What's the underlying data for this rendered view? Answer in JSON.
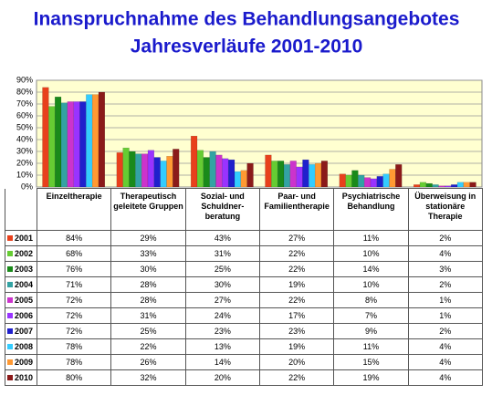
{
  "chart_data": {
    "type": "bar",
    "title": "Inanspruchnahme des Behandlungsangebotes",
    "subtitle": "Jahresverläufe 2001-2010",
    "categories": [
      "Einzeltherapie",
      "Therapeutisch geleitete Gruppen",
      "Sozial- und Schuldner-beratung",
      "Paar- und Familientherapie",
      "Psychiatrische Behandlung",
      "Überweisung in stationäre Therapie"
    ],
    "ylim": [
      0,
      90
    ],
    "yticks": [
      {
        "value": 0,
        "label": "0%"
      },
      {
        "value": 10,
        "label": "10%"
      },
      {
        "value": 20,
        "label": "20%"
      },
      {
        "value": 30,
        "label": "30%"
      },
      {
        "value": 40,
        "label": "40%"
      },
      {
        "value": 50,
        "label": "50%"
      },
      {
        "value": 60,
        "label": "60%"
      },
      {
        "value": 70,
        "label": "70%"
      },
      {
        "value": 80,
        "label": "80%"
      },
      {
        "value": 90,
        "label": "90%"
      }
    ],
    "grid": true,
    "series": [
      {
        "name": "2001",
        "color": "#e8401c",
        "values": [
          84,
          29,
          43,
          27,
          11,
          2
        ],
        "value_labels": [
          "84%",
          "29%",
          "43%",
          "27%",
          "11%",
          "2%"
        ]
      },
      {
        "name": "2002",
        "color": "#66cc33",
        "values": [
          68,
          33,
          31,
          22,
          10,
          4
        ],
        "value_labels": [
          "68%",
          "33%",
          "31%",
          "22%",
          "10%",
          "4%"
        ]
      },
      {
        "name": "2003",
        "color": "#1a8a1a",
        "values": [
          76,
          30,
          25,
          22,
          14,
          3
        ],
        "value_labels": [
          "76%",
          "30%",
          "25%",
          "22%",
          "14%",
          "3%"
        ]
      },
      {
        "name": "2004",
        "color": "#33a3a3",
        "values": [
          71,
          28,
          30,
          19,
          10,
          2
        ],
        "value_labels": [
          "71%",
          "28%",
          "30%",
          "19%",
          "10%",
          "2%"
        ]
      },
      {
        "name": "2005",
        "color": "#cc33cc",
        "values": [
          72,
          28,
          27,
          22,
          8,
          1
        ],
        "value_labels": [
          "72%",
          "28%",
          "27%",
          "22%",
          "8%",
          "1%"
        ]
      },
      {
        "name": "2006",
        "color": "#9933ff",
        "values": [
          72,
          31,
          24,
          17,
          7,
          1
        ],
        "value_labels": [
          "72%",
          "31%",
          "24%",
          "17%",
          "7%",
          "1%"
        ]
      },
      {
        "name": "2007",
        "color": "#2020cc",
        "values": [
          72,
          25,
          23,
          23,
          9,
          2
        ],
        "value_labels": [
          "72%",
          "25%",
          "23%",
          "23%",
          "9%",
          "2%"
        ]
      },
      {
        "name": "2008",
        "color": "#33ccff",
        "values": [
          78,
          22,
          13,
          19,
          11,
          4
        ],
        "value_labels": [
          "78%",
          "22%",
          "13%",
          "19%",
          "11%",
          "4%"
        ]
      },
      {
        "name": "2009",
        "color": "#ff9933",
        "values": [
          78,
          26,
          14,
          20,
          15,
          4
        ],
        "value_labels": [
          "78%",
          "26%",
          "14%",
          "20%",
          "15%",
          "4%"
        ]
      },
      {
        "name": "2010",
        "color": "#8b1a1a",
        "values": [
          80,
          32,
          20,
          22,
          19,
          4
        ],
        "value_labels": [
          "80%",
          "32%",
          "20%",
          "22%",
          "19%",
          "4%"
        ]
      }
    ]
  }
}
